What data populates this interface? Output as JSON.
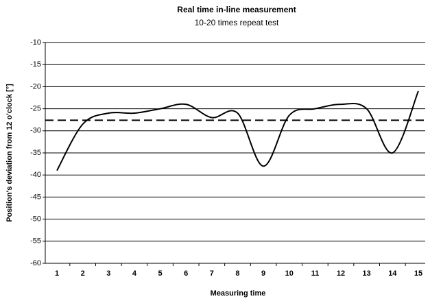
{
  "chart_data": {
    "type": "line",
    "title": "Real time in-line measurement",
    "subtitle": "10-20 times repeat test",
    "x_label": "Measuring time",
    "y_label": "Position's deviation from  12 o'clock [°]",
    "categories": [
      "1",
      "2",
      "3",
      "4",
      "5",
      "6",
      "7",
      "8",
      "9",
      "10",
      "11",
      "12",
      "13",
      "14",
      "15"
    ],
    "series": [
      {
        "color": "#000000",
        "values": [
          -39,
          -28.5,
          -26,
          -26,
          -25,
          -24,
          -27,
          -26,
          -38,
          -26.5,
          -25,
          -24,
          -25,
          -35,
          -21
        ]
      }
    ],
    "hlines": [
      {
        "value": -27.6,
        "color": "#000000",
        "style": "dashed"
      }
    ],
    "ylim": [
      -60,
      -10
    ],
    "yticks": [
      -10,
      -15,
      -20,
      -25,
      -30,
      -35,
      -40,
      -45,
      -50,
      -55,
      -60
    ],
    "grid": true
  }
}
